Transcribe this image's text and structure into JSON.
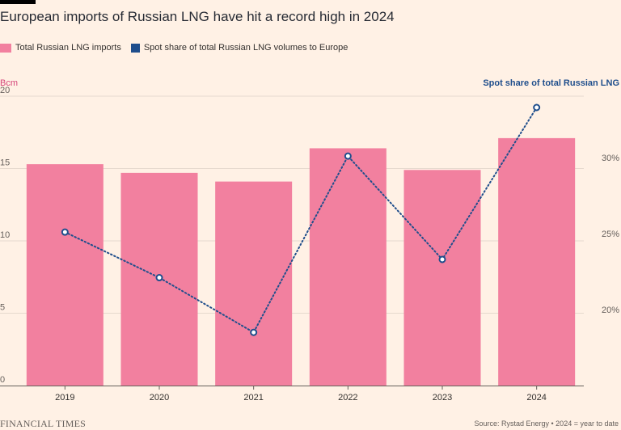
{
  "chart_data": {
    "type": "bar",
    "title": "European imports of Russian LNG have hit a record high in 2024",
    "categories": [
      "2019",
      "2020",
      "2021",
      "2022",
      "2023",
      "2024"
    ],
    "series": [
      {
        "name": "Total Russian LNG imports",
        "kind": "bar",
        "axis": "left",
        "color": "#f2809f",
        "values": [
          15.3,
          14.7,
          14.1,
          16.4,
          14.9,
          17.1
        ]
      },
      {
        "name": "Spot share of total Russian LNG volumes to Europe",
        "kind": "line",
        "axis": "right",
        "color": "#1f4e8c",
        "values": [
          25.1,
          22.1,
          18.5,
          30.1,
          23.3,
          33.3
        ]
      }
    ],
    "y_left": {
      "label": "Bcm",
      "ylim": [
        0,
        20
      ],
      "ticks": [
        "0",
        "5",
        "10",
        "15",
        "20"
      ],
      "tick_values": [
        0,
        5,
        10,
        15,
        20
      ]
    },
    "y_right": {
      "label": "Spot share of total Russian LNG",
      "ylim": [
        15,
        33.3
      ],
      "ticks": [
        "20%",
        "25%",
        "30%"
      ],
      "tick_values": [
        20,
        25,
        30
      ]
    },
    "grid": true,
    "legend": "top-left"
  },
  "footer": {
    "brand": "FINANCIAL TIMES",
    "source": "Source: Rystad Energy • 2024 = year to date"
  },
  "colors": {
    "background": "#fff1e5",
    "left_axis_label": "#d5477a",
    "right_axis_label": "#1f4e8c"
  }
}
